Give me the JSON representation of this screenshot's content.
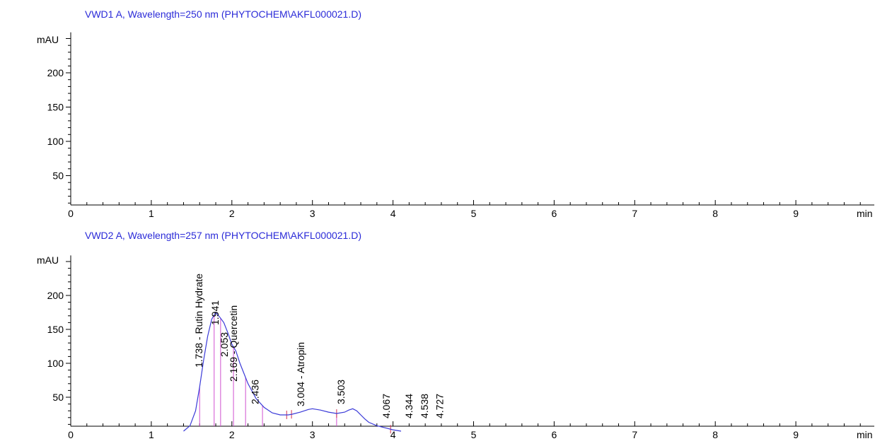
{
  "chart_data": [
    {
      "type": "line",
      "title": "VWD1 A, Wavelength=250 nm (PHYTOCHEM\\AKFL000021.D)",
      "ylabel": "mAU",
      "xlabel": "min",
      "xlim": [
        0,
        10
      ],
      "ylim": [
        0,
        260
      ],
      "x_ticks": [
        "0",
        "1",
        "2",
        "3",
        "4",
        "5",
        "6",
        "7",
        "8",
        "9"
      ],
      "y_ticks": [
        "50",
        "100",
        "150",
        "200"
      ],
      "series": []
    },
    {
      "type": "line",
      "title": "VWD2 A, Wavelength=257 nm (PHYTOCHEM\\AKFL000021.D)",
      "ylabel": "mAU",
      "xlabel": "min",
      "xlim": [
        0,
        10
      ],
      "ylim": [
        0,
        260
      ],
      "x_ticks": [
        "0",
        "1",
        "2",
        "3",
        "4",
        "5",
        "6",
        "7",
        "8",
        "9"
      ],
      "y_ticks": [
        "50",
        "100",
        "150",
        "200"
      ],
      "series": [
        {
          "x": [
            1.4,
            1.48,
            1.55,
            1.6,
            1.65,
            1.7,
            1.75,
            1.8,
            1.85,
            1.9,
            1.95,
            2.0,
            2.05,
            2.1,
            2.15,
            2.2,
            2.3,
            2.4,
            2.5,
            2.6,
            2.7,
            2.75,
            2.85,
            2.95,
            3.0,
            3.1,
            3.2,
            3.3,
            3.4,
            3.45,
            3.5,
            3.55,
            3.6,
            3.65,
            3.7,
            3.8,
            3.9,
            4.0,
            4.1
          ],
          "y": [
            0,
            8,
            30,
            65,
            105,
            140,
            165,
            175,
            168,
            160,
            145,
            128,
            118,
            100,
            85,
            70,
            48,
            35,
            27,
            24,
            24,
            25,
            28,
            32,
            33,
            31,
            28,
            26,
            28,
            31,
            33,
            30,
            24,
            18,
            13,
            8,
            5,
            2,
            0
          ]
        }
      ],
      "peaks": [
        {
          "rt": 1.738,
          "label": "1.738 -  Rutin Hydrate"
        },
        {
          "rt": 1.941,
          "label": "1.941"
        },
        {
          "rt": 2.053,
          "label": "2.053"
        },
        {
          "rt": 2.169,
          "label": "2.169 -  Quercetin"
        },
        {
          "rt": 2.436,
          "label": "2.436"
        },
        {
          "rt": 3.004,
          "label": "3.004 -  Atropin"
        },
        {
          "rt": 3.503,
          "label": "3.503"
        },
        {
          "rt": 4.067,
          "label": "4.067"
        },
        {
          "rt": 4.344,
          "label": "4.344"
        },
        {
          "rt": 4.538,
          "label": "4.538"
        },
        {
          "rt": 4.727,
          "label": "4.727"
        }
      ],
      "integration_lines": [
        1.6,
        1.78,
        1.86,
        2.02,
        2.17,
        2.38,
        3.3
      ],
      "baseline_markers": [
        2.68,
        2.74,
        3.3,
        3.97
      ]
    }
  ],
  "colors": {
    "title": "#2b2bd8",
    "signal": "#3a3ad8",
    "peak_lines": "#d050d0",
    "markers": "#d03050",
    "axes": "#000000"
  }
}
